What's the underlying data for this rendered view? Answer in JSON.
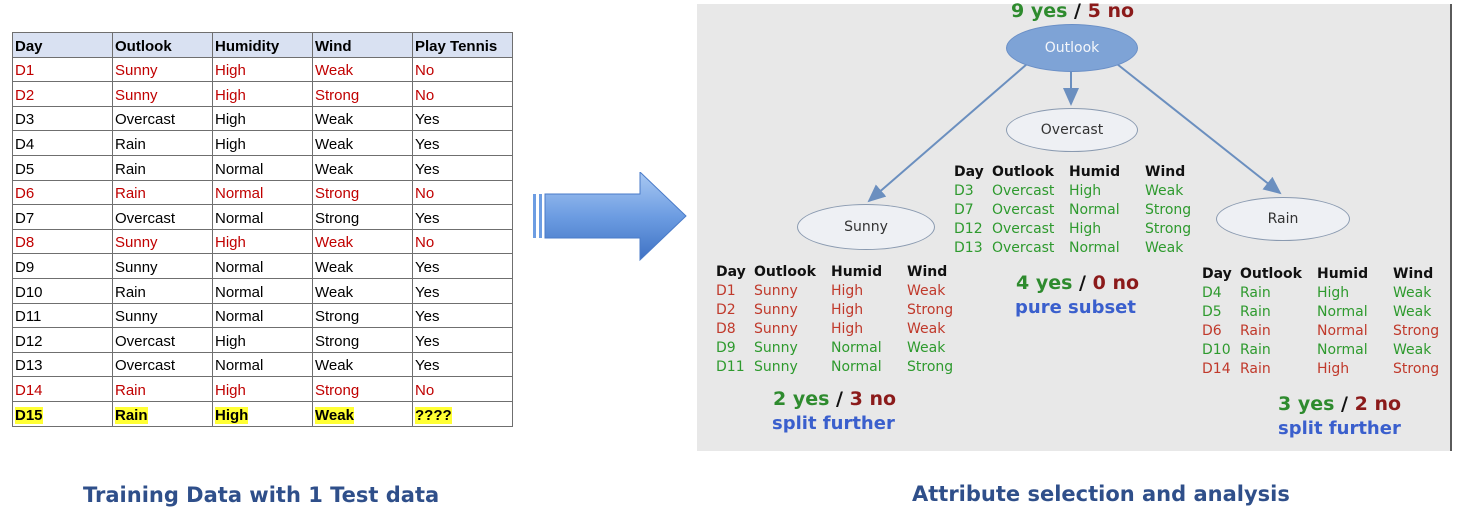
{
  "training_table": {
    "headers": [
      "Day",
      "Outlook",
      "Humidity",
      "Wind",
      "Play Tennis"
    ],
    "rows": [
      {
        "cells": [
          "D1",
          "Sunny",
          "High",
          "Weak",
          "No"
        ],
        "style": "red"
      },
      {
        "cells": [
          "D2",
          "Sunny",
          "High",
          "Strong",
          "No"
        ],
        "style": "red"
      },
      {
        "cells": [
          "D3",
          "Overcast",
          "High",
          "Weak",
          "Yes"
        ],
        "style": "black"
      },
      {
        "cells": [
          "D4",
          "Rain",
          "High",
          "Weak",
          "Yes"
        ],
        "style": "black"
      },
      {
        "cells": [
          "D5",
          "Rain",
          "Normal",
          "Weak",
          "Yes"
        ],
        "style": "black"
      },
      {
        "cells": [
          "D6",
          "Rain",
          "Normal",
          "Strong",
          "No"
        ],
        "style": "red"
      },
      {
        "cells": [
          "D7",
          "Overcast",
          "Normal",
          "Strong",
          "Yes"
        ],
        "style": "black"
      },
      {
        "cells": [
          "D8",
          "Sunny",
          "High",
          "Weak",
          "No"
        ],
        "style": "red"
      },
      {
        "cells": [
          "D9",
          "Sunny",
          "Normal",
          "Weak",
          "Yes"
        ],
        "style": "black"
      },
      {
        "cells": [
          "D10",
          "Rain",
          "Normal",
          "Weak",
          "Yes"
        ],
        "style": "black"
      },
      {
        "cells": [
          "D11",
          "Sunny",
          "Normal",
          "Strong",
          "Yes"
        ],
        "style": "black"
      },
      {
        "cells": [
          "D12",
          "Overcast",
          "High",
          "Strong",
          "Yes"
        ],
        "style": "black"
      },
      {
        "cells": [
          "D13",
          "Overcast",
          "Normal",
          "Weak",
          "Yes"
        ],
        "style": "black"
      },
      {
        "cells": [
          "D14",
          "Rain",
          "High",
          "Strong",
          "No"
        ],
        "style": "red"
      },
      {
        "cells": [
          "D15",
          "Rain",
          "High",
          "Weak",
          "????"
        ],
        "style": "highlight"
      }
    ]
  },
  "tree": {
    "root": {
      "label": "Outlook",
      "yes": "9 yes",
      "sep": "/",
      "no": "5 no"
    },
    "sunny": {
      "label": "Sunny",
      "yes": "2 yes",
      "sep": "/",
      "no": "3 no",
      "note": "split further",
      "headers": [
        "Day",
        "Outlook",
        "Humid",
        "Wind"
      ],
      "rows": [
        {
          "cells": [
            "D1",
            "Sunny",
            "High",
            "Weak"
          ],
          "cls": "r"
        },
        {
          "cells": [
            "D2",
            "Sunny",
            "High",
            "Strong"
          ],
          "cls": "r"
        },
        {
          "cells": [
            "D8",
            "Sunny",
            "High",
            "Weak"
          ],
          "cls": "r"
        },
        {
          "cells": [
            "D9",
            "Sunny",
            "Normal",
            "Weak"
          ],
          "cls": "g"
        },
        {
          "cells": [
            "D11",
            "Sunny",
            "Normal",
            "Strong"
          ],
          "cls": "g"
        }
      ]
    },
    "overcast": {
      "label": "Overcast",
      "yes": "4 yes",
      "sep": "/",
      "no": "0 no",
      "note": "pure subset",
      "headers": [
        "Day",
        "Outlook",
        "Humid",
        "Wind"
      ],
      "rows": [
        {
          "cells": [
            "D3",
            "Overcast",
            "High",
            "Weak"
          ],
          "cls": "g"
        },
        {
          "cells": [
            "D7",
            "Overcast",
            "Normal",
            "Strong"
          ],
          "cls": "g"
        },
        {
          "cells": [
            "D12",
            "Overcast",
            "High",
            "Strong"
          ],
          "cls": "g"
        },
        {
          "cells": [
            "D13",
            "Overcast",
            "Normal",
            "Weak"
          ],
          "cls": "g"
        }
      ]
    },
    "rain": {
      "label": "Rain",
      "yes": "3 yes",
      "sep": "/",
      "no": "2 no",
      "note": "split further",
      "headers": [
        "Day",
        "Outlook",
        "Humid",
        "Wind"
      ],
      "rows": [
        {
          "cells": [
            "D4",
            "Rain",
            "High",
            "Weak"
          ],
          "cls": "g"
        },
        {
          "cells": [
            "D5",
            "Rain",
            "Normal",
            "Weak"
          ],
          "cls": "g"
        },
        {
          "cells": [
            "D6",
            "Rain",
            "Normal",
            "Strong"
          ],
          "cls": "r"
        },
        {
          "cells": [
            "D10",
            "Rain",
            "Normal",
            "Weak"
          ],
          "cls": "g"
        },
        {
          "cells": [
            "D14",
            "Rain",
            "High",
            "Strong"
          ],
          "cls": "r"
        }
      ]
    }
  },
  "captions": {
    "left": "Training Data with 1 Test data",
    "right": "Attribute selection and  analysis"
  },
  "colors": {
    "yes": "#2e8b2e",
    "no": "#8b1a1a",
    "red_text": "#c00000",
    "highlight": "#ffff33",
    "note": "#3a5fcd",
    "caption": "#2f4f8a",
    "arrow": "#5b8fdd"
  }
}
